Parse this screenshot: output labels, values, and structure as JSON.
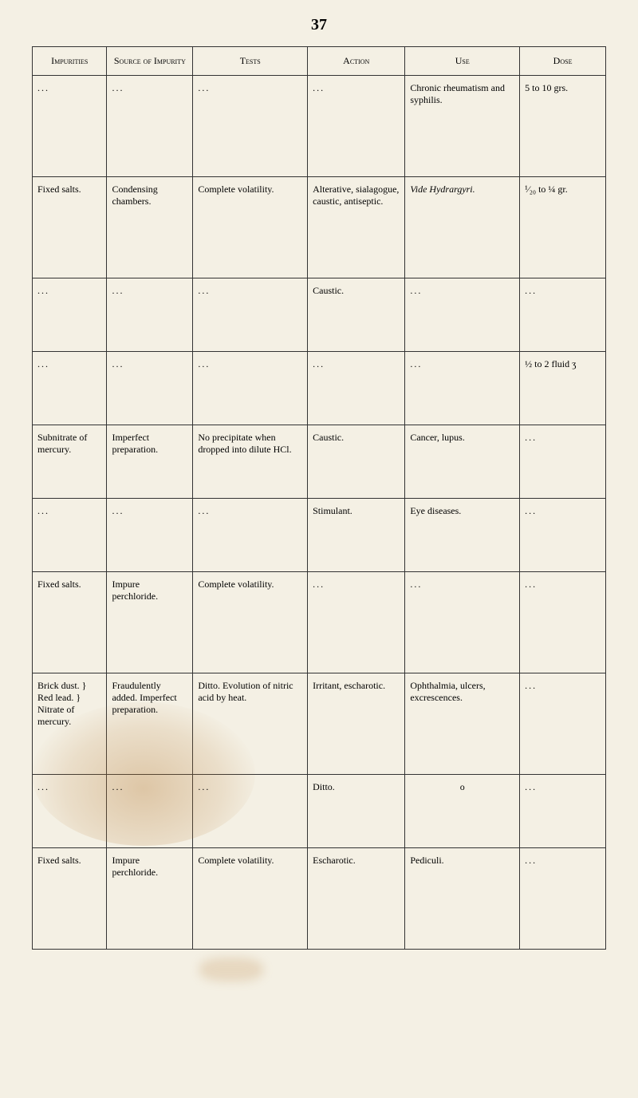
{
  "page_number": "37",
  "headers": [
    "Impurities",
    "Source of Impurity",
    "Tests",
    "Action",
    "Use",
    "Dose"
  ],
  "rows": [
    {
      "cells": [
        "...",
        "...",
        "...",
        "...",
        "Chronic rheumatism and syphilis.",
        "5 to 10 grs."
      ]
    },
    {
      "cells": [
        "Fixed salts.",
        "Condensing chambers.",
        "Complete volatility.",
        "Alterative, sialagogue, caustic, antiseptic.",
        "Vide Hydrargyri.",
        "¹⁄₂₀ to ¼ gr."
      ]
    },
    {
      "cells": [
        "...",
        "...",
        "...",
        "Caustic.",
        "...",
        "..."
      ]
    },
    {
      "cells": [
        "...",
        "...",
        "...",
        "...",
        "...",
        "½ to 2 fluid ʒ"
      ]
    },
    {
      "cells": [
        "Subnitrate of mercury.",
        "Imperfect preparation.",
        "No precipitate when dropped into dilute HCl.",
        "Caustic.",
        "Cancer, lupus.",
        "..."
      ]
    },
    {
      "cells": [
        "...",
        "...",
        "...",
        "Stimulant.",
        "Eye diseases.",
        "..."
      ]
    },
    {
      "cells": [
        "Fixed salts.",
        "Impure perchloride.",
        "Complete volatility.",
        "...",
        "...",
        "..."
      ]
    },
    {
      "cells": [
        "Brick dust. } Red lead.  } Nitrate of mercury.",
        "Fraudulently added. Imperfect preparation.",
        "Ditto. Evolution of nitric acid by heat.",
        "Irritant, escharotic.",
        "Ophthalmia, ulcers, excrescences.",
        "..."
      ]
    },
    {
      "cells": [
        "...",
        "...",
        "...",
        "Ditto.",
        "o",
        "..."
      ]
    },
    {
      "cells": [
        "Fixed salts.",
        "Impure perchloride.",
        "Complete volatility.",
        "Escharotic.",
        "Pediculi.",
        "..."
      ]
    }
  ],
  "colors": {
    "background": "#f4f0e4",
    "border": "#333333",
    "text": "#1a1a1a",
    "stain": "rgba(180, 120, 50, 0.3)"
  },
  "fontsize": {
    "page_number": 20,
    "header": 12,
    "cell": 12
  }
}
